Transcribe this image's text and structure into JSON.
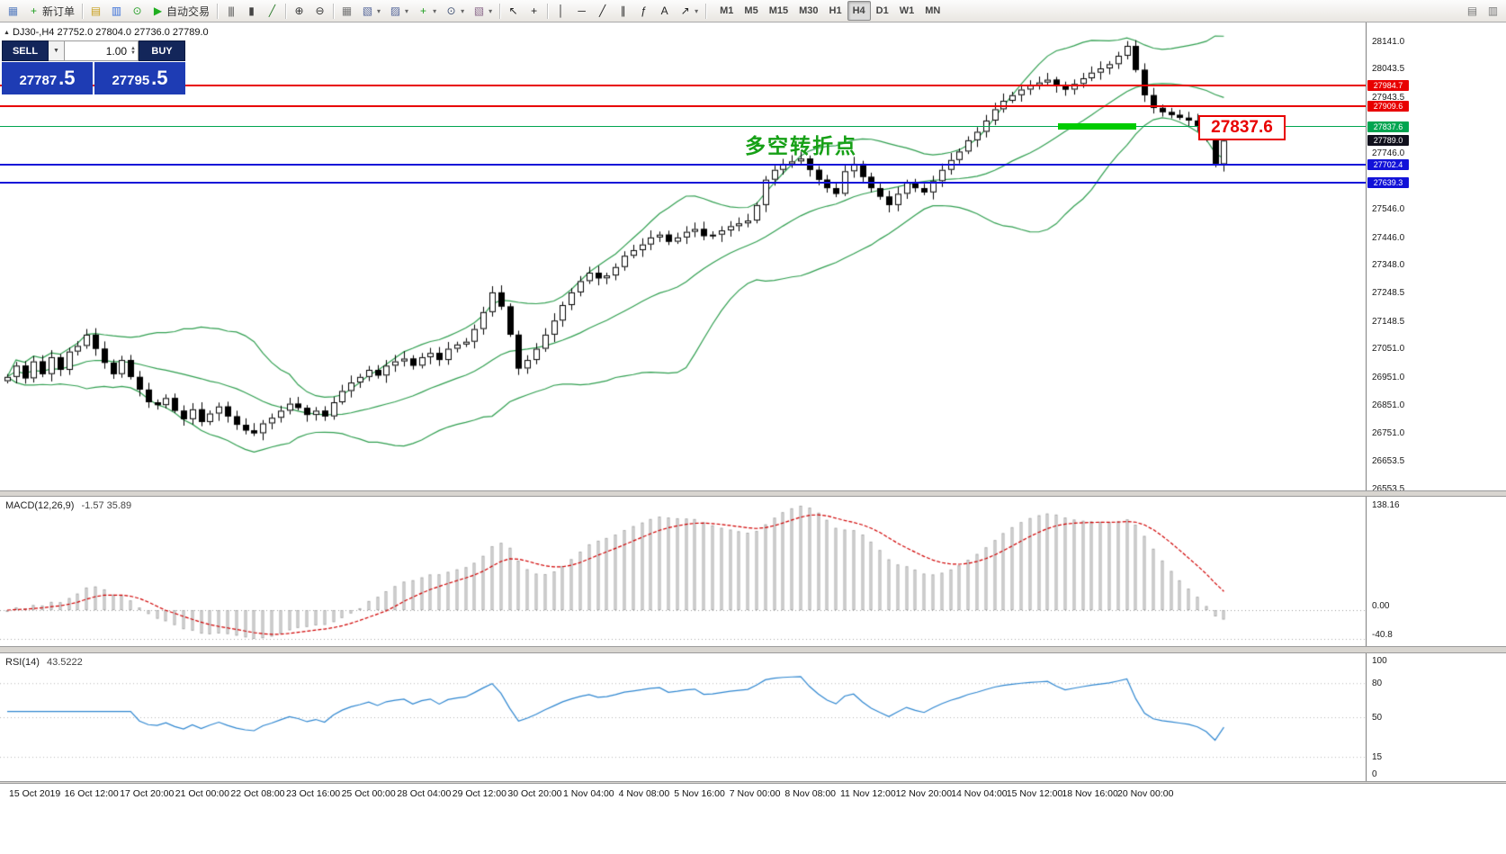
{
  "toolbar": {
    "items": [
      {
        "name": "terminal-icon",
        "glyph": "▦",
        "color": "#5a7fc0"
      },
      {
        "name": "new-order-button",
        "icon": "new-order-icon",
        "glyph": "+",
        "color": "#1f9e1f",
        "label": "新订单"
      },
      {
        "type": "sep"
      },
      {
        "name": "marketwatch-icon",
        "glyph": "▤",
        "color": "#c8a020"
      },
      {
        "name": "data-window-icon",
        "glyph": "▥",
        "color": "#3a6fd8"
      },
      {
        "name": "navigator-icon",
        "glyph": "⊙",
        "color": "#2da12d"
      },
      {
        "name": "autotrading-button",
        "icon": "autotrading-play-icon",
        "glyph": "▶",
        "color": "#1fae1f",
        "label": "自动交易"
      },
      {
        "type": "sep"
      },
      {
        "name": "bar-chart-icon",
        "glyph": "|||",
        "color": "#444"
      },
      {
        "name": "candlestick-chart-icon",
        "glyph": "▮",
        "color": "#444"
      },
      {
        "name": "line-chart-icon",
        "glyph": "╱",
        "color": "#2a7a2a"
      },
      {
        "type": "sep"
      },
      {
        "name": "zoom-in-icon",
        "glyph": "⊕",
        "color": "#333"
      },
      {
        "name": "zoom-out-icon",
        "glyph": "⊖",
        "color": "#333"
      },
      {
        "type": "sep"
      },
      {
        "name": "tile-windows-icon",
        "glyph": "▦",
        "color": "#777"
      },
      {
        "name": "new-chart-icon",
        "glyph": "▧",
        "color": "#556699",
        "caret": true
      },
      {
        "name": "profiles-icon",
        "glyph": "▨",
        "color": "#556699",
        "caret": true
      },
      {
        "name": "indicators-icon",
        "glyph": "+",
        "color": "#1f9e1f",
        "caret": true
      },
      {
        "name": "periods-icon",
        "glyph": "⊙",
        "color": "#445577",
        "caret": true
      },
      {
        "name": "templates-icon",
        "glyph": "▧",
        "color": "#886688",
        "caret": true
      },
      {
        "type": "sep"
      },
      {
        "name": "cursor-icon",
        "glyph": "↖",
        "color": "#222"
      },
      {
        "name": "crosshair-icon",
        "glyph": "+",
        "color": "#222"
      },
      {
        "type": "sep"
      },
      {
        "name": "vertical-line-icon",
        "glyph": "│",
        "color": "#222"
      },
      {
        "name": "horizontal-line-icon",
        "glyph": "─",
        "color": "#222"
      },
      {
        "name": "trendline-icon",
        "glyph": "╱",
        "color": "#222"
      },
      {
        "name": "channel-icon",
        "glyph": "∥",
        "color": "#222"
      },
      {
        "name": "fibonacci-icon",
        "glyph": "ƒ",
        "color": "#222"
      },
      {
        "name": "text-icon",
        "glyph": "A",
        "color": "#222"
      },
      {
        "name": "arrows-icon",
        "glyph": "↗",
        "color": "#222",
        "caret": true
      },
      {
        "type": "sep"
      }
    ],
    "timeframes": [
      {
        "label": "M1"
      },
      {
        "label": "M5"
      },
      {
        "label": "M15"
      },
      {
        "label": "M30"
      },
      {
        "label": "H1"
      },
      {
        "label": "H4",
        "active": true
      },
      {
        "label": "D1"
      },
      {
        "label": "W1"
      },
      {
        "label": "MN"
      }
    ],
    "right_items": [
      {
        "name": "arrange-windows-button",
        "glyph": "▤"
      },
      {
        "name": "options-button",
        "glyph": "▥"
      }
    ]
  },
  "chart": {
    "symbol_header": "DJ30-,H4 27752.0 27804.0 27736.0 27789.0",
    "trade_panel": {
      "sell_label": "SELL",
      "buy_label": "BUY",
      "lot_size": "1.00",
      "sell_price_int": "27787",
      "sell_price_frac": ".5",
      "buy_price_int": "27795",
      "buy_price_frac": ".5"
    },
    "annotations": {
      "turning_point_label": "多空转折点",
      "price_callout": "27837.6",
      "highlight_segment": {
        "price": 27837.6,
        "color": "#00cc00"
      }
    },
    "hlines": [
      {
        "price": 27984.7,
        "color": "#e80000",
        "width": 2
      },
      {
        "price": 27909.6,
        "color": "#e80000",
        "width": 2
      },
      {
        "price": 27837.6,
        "color": "#00a550",
        "width": 1
      },
      {
        "price": 27702.4,
        "color": "#1212d8",
        "width": 2
      },
      {
        "price": 27639.3,
        "color": "#1212d8",
        "width": 2
      }
    ],
    "price_labels": [
      {
        "text": "27984.7",
        "bg": "#e80000"
      },
      {
        "text": "27909.6",
        "bg": "#e80000"
      },
      {
        "text": "27837.6",
        "bg": "#00a550"
      },
      {
        "text": "27789.0",
        "bg": "#10101c"
      },
      {
        "text": "27702.4",
        "bg": "#1212d8"
      },
      {
        "text": "27639.3",
        "bg": "#1212d8"
      }
    ],
    "y_axis_labels": [
      "28141.0",
      "28043.5",
      "27943.5",
      "27746.0",
      "27546.0",
      "27446.0",
      "27348.0",
      "27248.5",
      "27148.5",
      "27051.0",
      "26951.0",
      "26851.0",
      "26751.0",
      "26653.5",
      "26553.5"
    ]
  },
  "macd": {
    "name": "MACD(12,26,9)",
    "values": "-1.57 35.89",
    "scale": {
      "top": "138.16",
      "zero": "0.00",
      "bottom": "-40.8"
    }
  },
  "rsi": {
    "name": "RSI(14)",
    "value": "43.5222",
    "scale": [
      {
        "v": 100,
        "text": "100"
      },
      {
        "v": 80,
        "text": "80"
      },
      {
        "v": 50,
        "text": "50"
      },
      {
        "v": 15,
        "text": "15"
      },
      {
        "v": 0,
        "text": "0"
      }
    ],
    "levels": [
      80,
      50,
      15
    ]
  },
  "time_axis": [
    "15 Oct 2019",
    "16 Oct 12:00",
    "17 Oct 20:00",
    "21 Oct 00:00",
    "22 Oct 08:00",
    "23 Oct 16:00",
    "25 Oct 00:00",
    "28 Oct 04:00",
    "29 Oct 12:00",
    "30 Oct 20:00",
    "1 Nov 04:00",
    "4 Nov 08:00",
    "5 Nov 16:00",
    "7 Nov 00:00",
    "8 Nov 08:00",
    "11 Nov 12:00",
    "12 Nov 20:00",
    "14 Nov 04:00",
    "15 Nov 12:00",
    "18 Nov 16:00",
    "20 Nov 00:00"
  ],
  "chart_data": {
    "type": "candlestick",
    "symbol": "DJ30-",
    "timeframe": "H4",
    "title": "DJ30-,H4",
    "last_ohlc": {
      "open": 27752.0,
      "high": 27804.0,
      "low": 27736.0,
      "close": 27789.0
    },
    "y_range": [
      26553.5,
      28141.0
    ],
    "overlays": [
      "Bollinger Bands (20,2) green"
    ],
    "sub_indicators": [
      "MACD(12,26,9) histogram + red signal",
      "RSI(14) blue line"
    ],
    "closes": [
      26950,
      26990,
      26945,
      27005,
      26960,
      27020,
      26975,
      27040,
      27060,
      27100,
      27050,
      27000,
      26960,
      27010,
      26950,
      26905,
      26860,
      26850,
      26875,
      26830,
      26800,
      26835,
      26790,
      26820,
      26845,
      26810,
      26780,
      26760,
      26750,
      26785,
      26805,
      26830,
      26855,
      26840,
      26815,
      26830,
      26810,
      26860,
      26900,
      26930,
      26950,
      26975,
      26955,
      26990,
      27005,
      27015,
      26990,
      27020,
      27035,
      27010,
      27050,
      27065,
      27075,
      27120,
      27180,
      27250,
      27200,
      27100,
      26980,
      27010,
      27050,
      27100,
      27150,
      27205,
      27250,
      27290,
      27320,
      27300,
      27310,
      27340,
      27380,
      27400,
      27420,
      27445,
      27455,
      27430,
      27445,
      27465,
      27475,
      27450,
      27455,
      27470,
      27485,
      27495,
      27505,
      27560,
      27650,
      27685,
      27705,
      27715,
      27725,
      27685,
      27650,
      27620,
      27600,
      27680,
      27705,
      27660,
      27620,
      27590,
      27560,
      27600,
      27640,
      27620,
      27605,
      27645,
      27685,
      27720,
      27750,
      27790,
      27820,
      27860,
      27900,
      27930,
      27950,
      27970,
      27985,
      27995,
      28005,
      27985,
      27970,
      27990,
      28010,
      28030,
      28045,
      28060,
      28090,
      28125,
      28040,
      27950,
      27905,
      27890,
      27880,
      27870,
      27860,
      27840,
      27800,
      27705,
      27789
    ]
  }
}
